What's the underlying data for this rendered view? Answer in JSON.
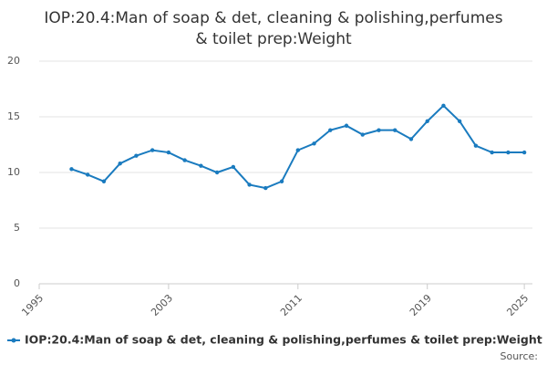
{
  "chart_data": {
    "type": "line",
    "title": [
      "IOP:20.4:Man of soap & det, cleaning & polishing,perfumes",
      "& toilet prep:Weight"
    ],
    "x": [
      1997,
      1998,
      1999,
      2000,
      2001,
      2002,
      2003,
      2004,
      2005,
      2006,
      2007,
      2008,
      2009,
      2010,
      2011,
      2012,
      2013,
      2014,
      2015,
      2016,
      2017,
      2018,
      2019,
      2020,
      2021,
      2022,
      2023,
      2024,
      2025
    ],
    "series": [
      {
        "name": "IOP:20.4:Man of soap & det, cleaning & polishing,perfumes & toilet prep:Weight",
        "color": "#1a7bbf",
        "values": [
          10.3,
          9.8,
          9.2,
          10.8,
          11.5,
          12.0,
          11.8,
          11.1,
          10.6,
          10.0,
          10.5,
          8.9,
          8.6,
          9.2,
          12.0,
          12.6,
          13.8,
          14.2,
          13.4,
          13.8,
          13.8,
          13.0,
          14.6,
          16.0,
          14.6,
          12.4,
          11.8,
          11.8,
          11.8
        ]
      }
    ],
    "xlim": [
      1995,
      2025.5
    ],
    "xticks": [
      1995,
      2003,
      2011,
      2019,
      2025
    ],
    "ylim": [
      0,
      20
    ],
    "yticks": [
      0,
      5,
      10,
      15,
      20
    ],
    "grid": true,
    "legend": "bottom",
    "source_label": "Source:"
  }
}
